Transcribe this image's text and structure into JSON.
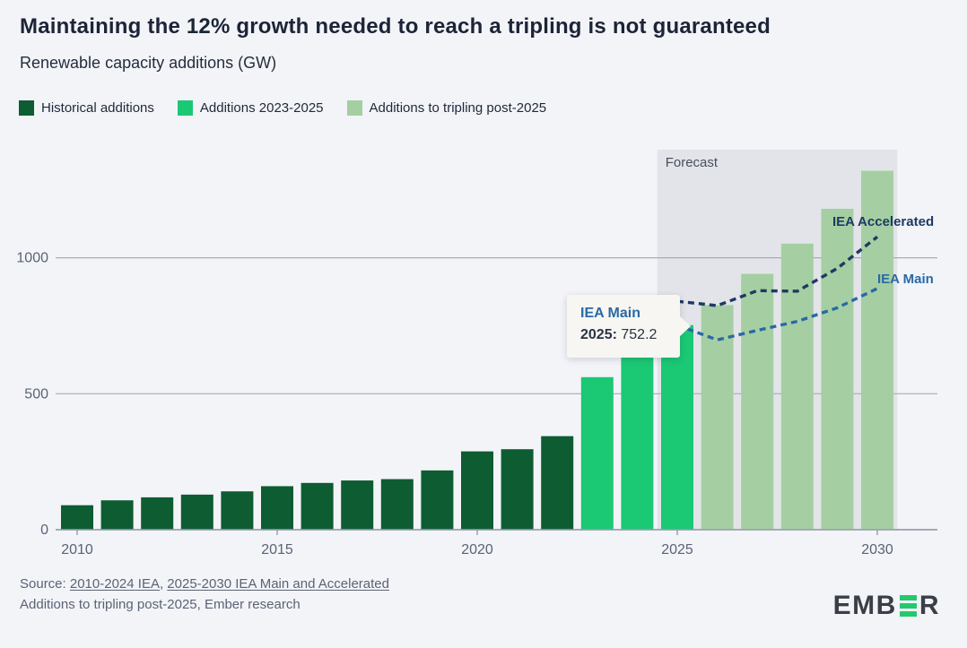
{
  "header": {
    "title": "Maintaining the 12% growth needed to reach a tripling is not guaranteed",
    "subtitle": "Renewable capacity additions (GW)"
  },
  "legend": [
    {
      "label": "Historical additions",
      "color": "#0e5c32",
      "from": 2010,
      "to": 2022
    },
    {
      "label": "Additions 2023-2025",
      "color": "#1bc874",
      "from": 2023,
      "to": 2025
    },
    {
      "label": "Additions to tripling post-2025",
      "color": "#a5cfa2",
      "from": 2026,
      "to": 2030
    }
  ],
  "chart_data": {
    "type": "bar",
    "title": "Maintaining the 12% growth needed to reach a tripling is not guaranteed",
    "ylabel": "Renewable capacity additions (GW)",
    "categories": [
      2010,
      2011,
      2012,
      2013,
      2014,
      2015,
      2016,
      2017,
      2018,
      2019,
      2020,
      2021,
      2022,
      2023,
      2024,
      2025,
      2026,
      2027,
      2028,
      2029,
      2030
    ],
    "values": [
      90,
      108,
      119,
      129,
      141,
      160,
      172,
      181,
      186,
      218,
      288,
      296,
      344,
      561,
      635,
      752.2,
      826,
      941,
      1052,
      1180,
      1320
    ],
    "yticks": [
      0,
      500,
      1000
    ],
    "xticks": [
      2010,
      2015,
      2020,
      2025,
      2030
    ],
    "ylim": [
      0,
      1400
    ],
    "grid": "horizontal",
    "forecast": {
      "label": "Forecast",
      "from_year": 2025,
      "to_year": 2030
    },
    "series": [
      {
        "name": "IEA Accelerated",
        "type": "line-dashed",
        "color": "#1d3a63",
        "x": [
          2025,
          2026,
          2027,
          2028,
          2029,
          2030
        ],
        "values": [
          840,
          824,
          879,
          877,
          961,
          1077
        ]
      },
      {
        "name": "IEA Main",
        "type": "line-dashed",
        "color": "#2a69a5",
        "x": [
          2025,
          2026,
          2027,
          2028,
          2029,
          2030
        ],
        "values": [
          752.2,
          698,
          733,
          766,
          816,
          887
        ]
      }
    ]
  },
  "tooltip": {
    "series": "IEA Main",
    "year_label": "2025:",
    "value": "752.2"
  },
  "annotations": {
    "accelerated": "IEA Accelerated",
    "main": "IEA Main"
  },
  "footer": {
    "prefix": "Source: ",
    "link1": "2010-2024 IEA",
    "sep": ", ",
    "link2": "2025-2030 IEA Main and Accelerated",
    "line2": "Additions to tripling post-2025, Ember research"
  },
  "logo": {
    "left": "EMB",
    "right": "R",
    "green": "#25c96d"
  }
}
